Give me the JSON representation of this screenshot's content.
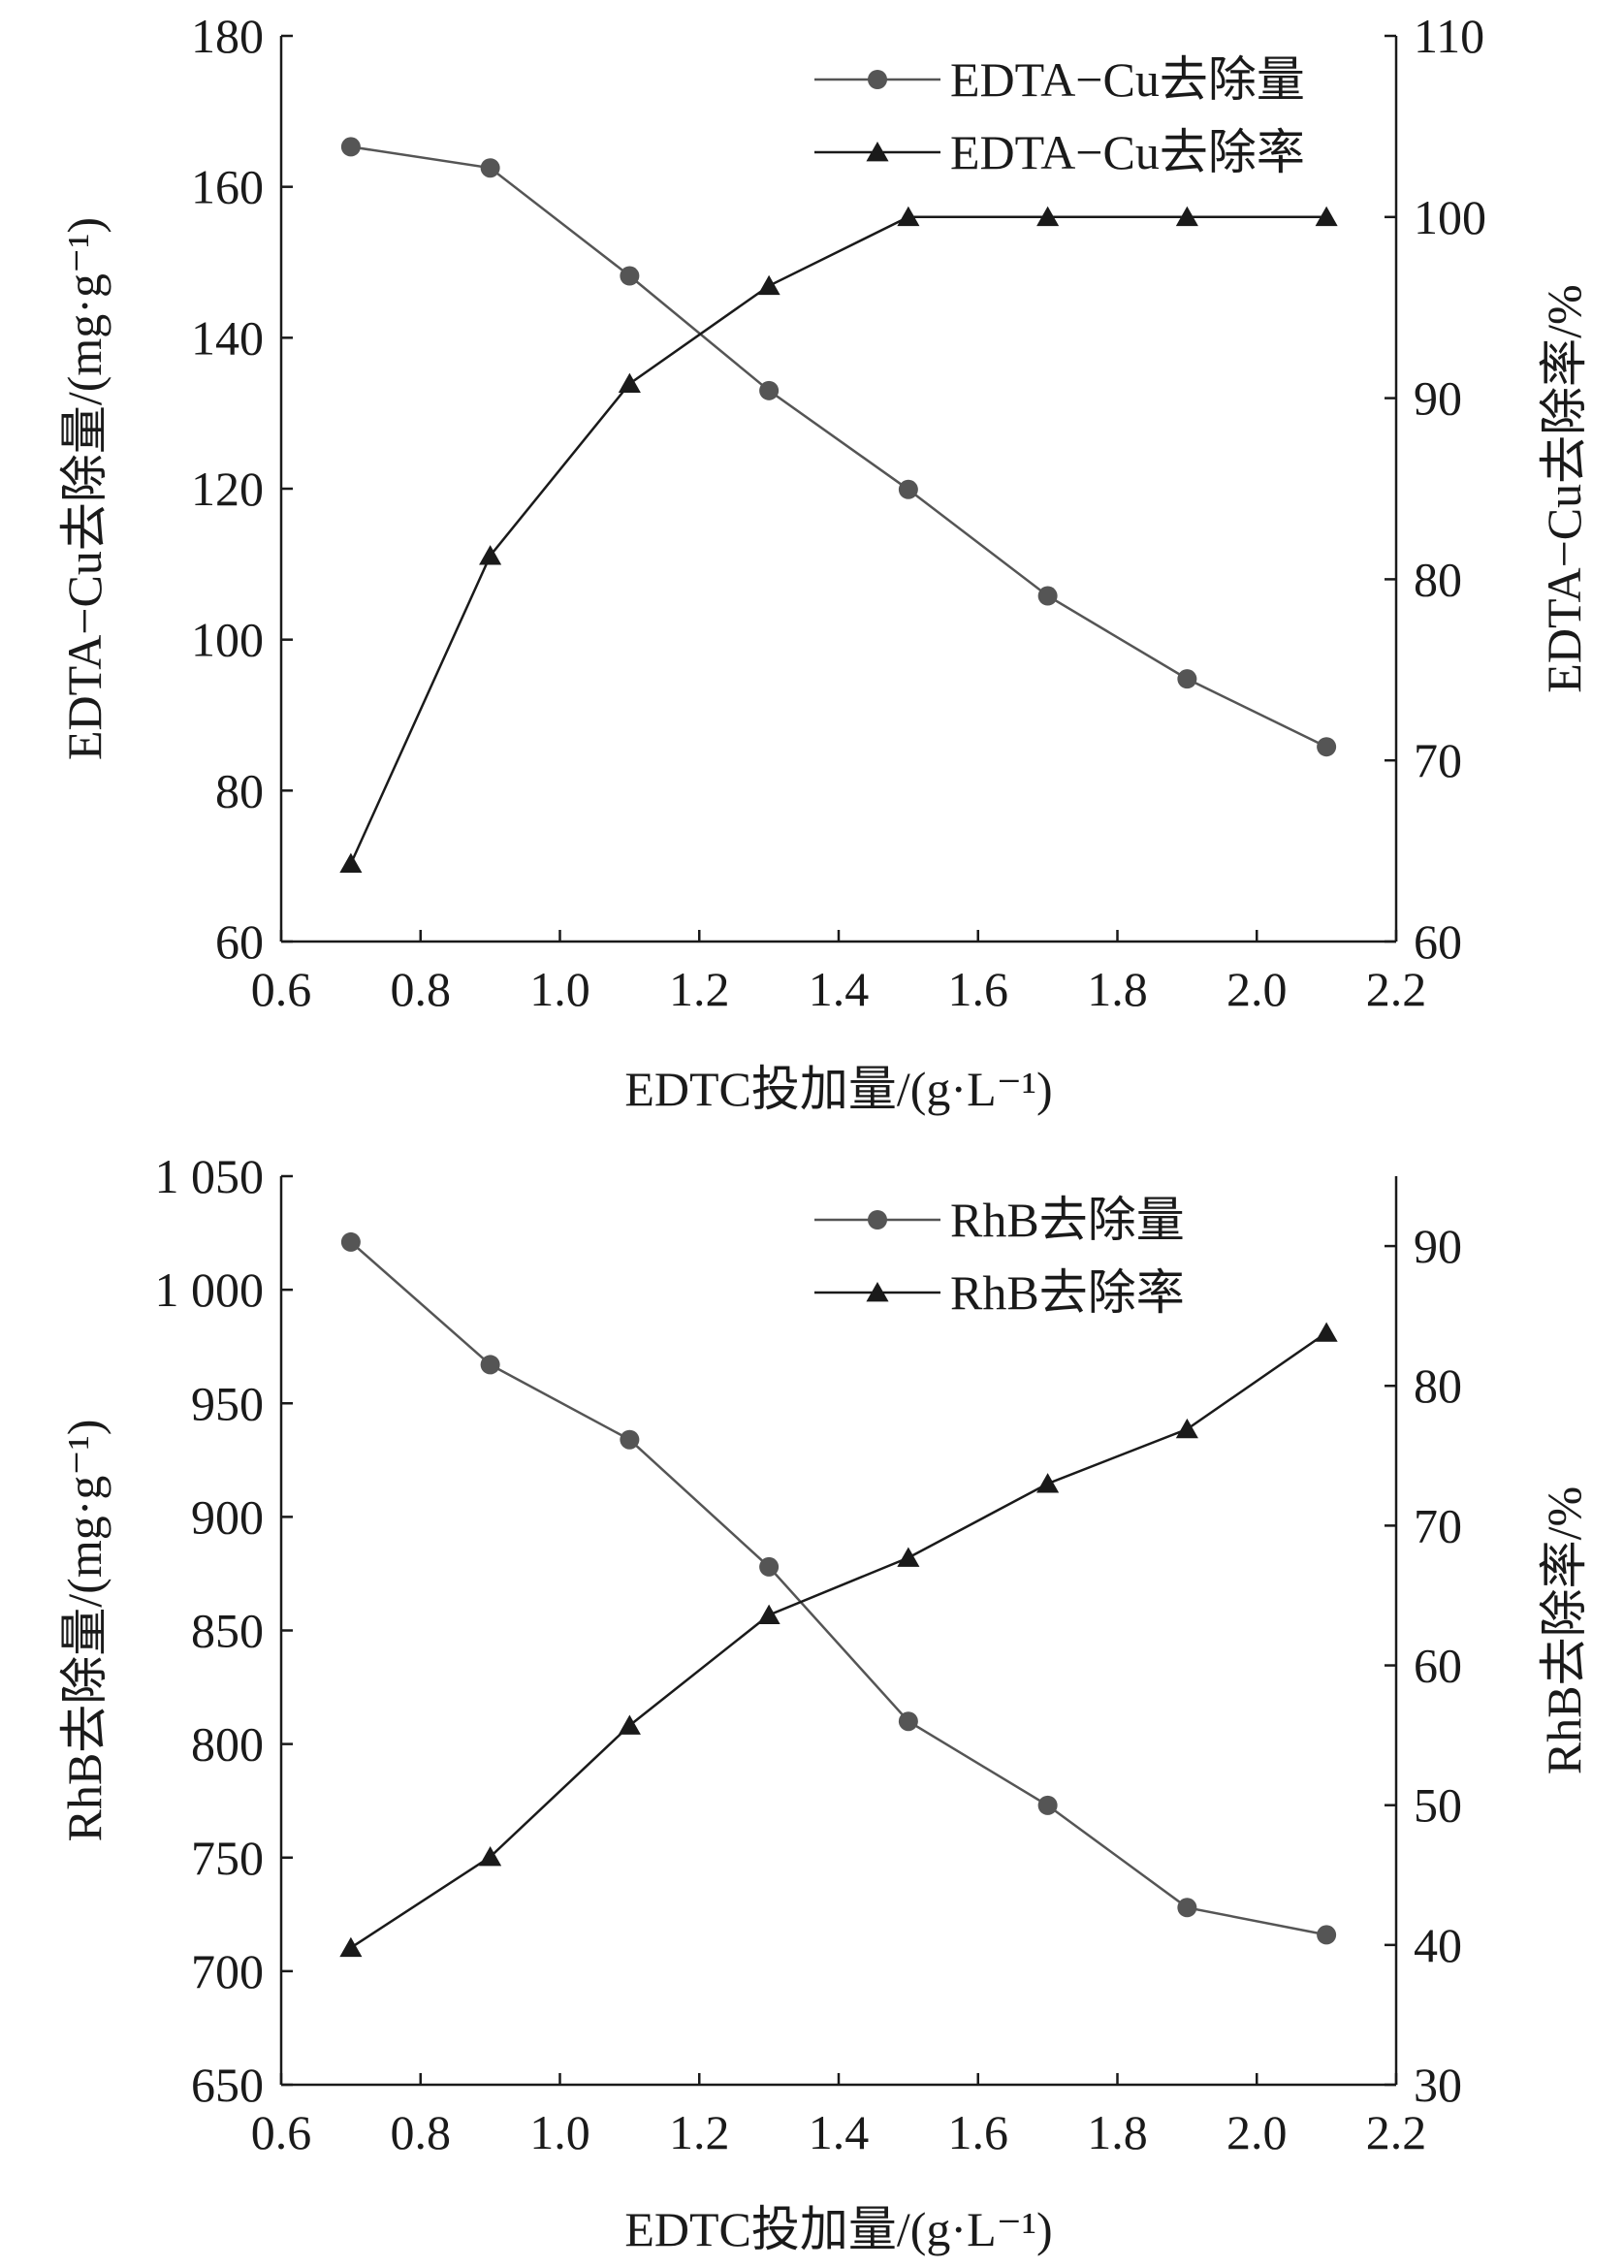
{
  "chart_data": [
    {
      "type": "line",
      "x": [
        0.7,
        0.9,
        1.1,
        1.3,
        1.5,
        1.7,
        1.9,
        2.1
      ],
      "xlabel": "EDTC投加量/(g·L⁻¹)",
      "xlim": [
        0.6,
        2.2
      ],
      "xticks": [
        "0.6",
        "0.8",
        "1.0",
        "1.2",
        "1.4",
        "1.6",
        "1.8",
        "2.0",
        "2.2"
      ],
      "ylabel_left": "EDTA−Cu去除量/(mg·g⁻¹)",
      "ylim_left": [
        60,
        180
      ],
      "yticks_left": [
        "60",
        "80",
        "100",
        "120",
        "140",
        "160",
        "180"
      ],
      "ylabel_right": "EDTA−Cu去除率/%",
      "ylim_right": [
        60,
        110
      ],
      "yticks_right": [
        "60",
        "70",
        "80",
        "90",
        "100",
        "110"
      ],
      "legend_position": "top-right",
      "grid": false,
      "series": [
        {
          "name": "EDTA−Cu去除量",
          "axis": "left",
          "marker": "circle",
          "color": "#555555",
          "values": [
            165.3,
            162.5,
            148.2,
            133.0,
            119.9,
            105.8,
            94.8,
            85.8
          ]
        },
        {
          "name": "EDTA−Cu去除率",
          "axis": "right",
          "marker": "triangle",
          "color": "#1a1a1a",
          "values": [
            64.3,
            81.3,
            90.8,
            96.2,
            100.0,
            100.0,
            100.0,
            100.0
          ]
        }
      ]
    },
    {
      "type": "line",
      "x": [
        0.7,
        0.9,
        1.1,
        1.3,
        1.5,
        1.7,
        1.9,
        2.1
      ],
      "xlabel": "EDTC投加量/(g·L⁻¹)",
      "xlim": [
        0.6,
        2.2
      ],
      "xticks": [
        "0.6",
        "0.8",
        "1.0",
        "1.2",
        "1.4",
        "1.6",
        "1.8",
        "2.0",
        "2.2"
      ],
      "ylabel_left": "RhB去除量/(mg·g⁻¹)",
      "ylim_left": [
        650,
        1050
      ],
      "yticks_left": [
        "650",
        "700",
        "750",
        "800",
        "850",
        "900",
        "950",
        "1 000",
        "1 050"
      ],
      "ylabel_right": "RhB去除率/%",
      "ylim_right": [
        30,
        95
      ],
      "yticks_right": [
        "30",
        "40",
        "50",
        "60",
        "70",
        "80",
        "90"
      ],
      "legend_position": "top-right",
      "grid": false,
      "series": [
        {
          "name": "RhB去除量",
          "axis": "left",
          "marker": "circle",
          "color": "#555555",
          "values": [
            1021,
            967,
            934,
            878,
            810,
            773,
            728,
            716
          ]
        },
        {
          "name": "RhB去除率",
          "axis": "right",
          "marker": "triangle",
          "color": "#1a1a1a",
          "values": [
            39.8,
            46.3,
            55.7,
            63.6,
            67.7,
            73.0,
            76.9,
            83.8
          ]
        }
      ]
    }
  ]
}
